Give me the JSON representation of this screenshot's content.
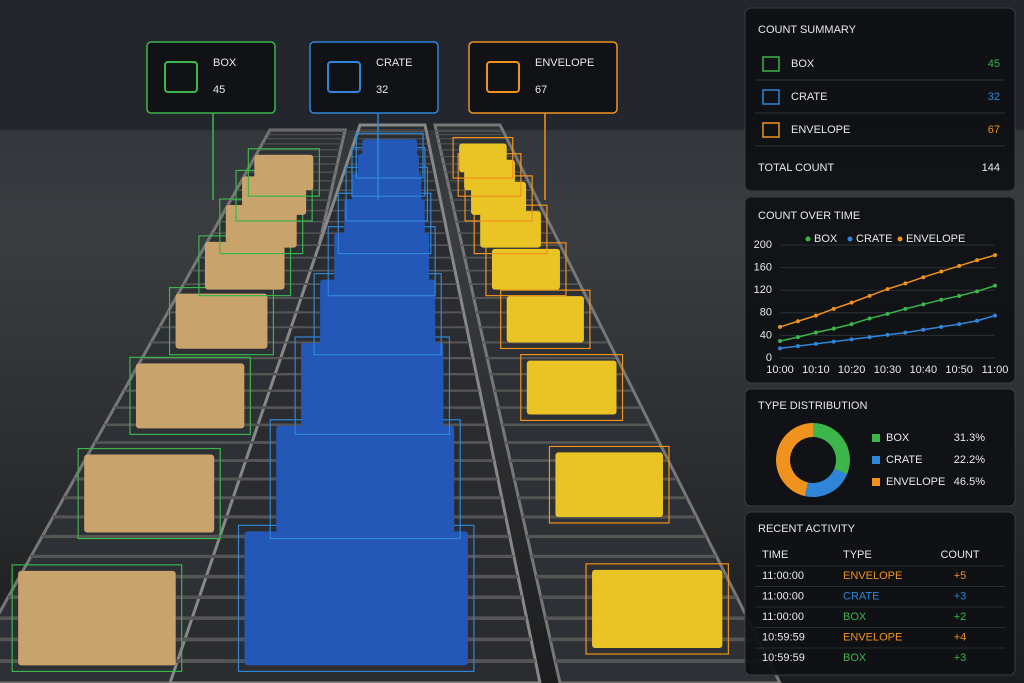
{
  "labels": [
    {
      "name": "BOX",
      "count": 45,
      "color": "#3cb54a"
    },
    {
      "name": "CRATE",
      "count": 32,
      "color": "#2f86d8"
    },
    {
      "name": "ENVELOPE",
      "count": 67,
      "color": "#f0921e"
    }
  ],
  "summary": {
    "title": "COUNT SUMMARY",
    "rows": [
      {
        "name": "BOX",
        "count": 45,
        "color": "#3cb54a"
      },
      {
        "name": "CRATE",
        "count": 32,
        "color": "#2f86d8"
      },
      {
        "name": "ENVELOPE",
        "count": 67,
        "color": "#f0921e"
      }
    ],
    "total_label": "TOTAL COUNT",
    "total": 144
  },
  "chart_data": [
    {
      "type": "line",
      "title": "COUNT OVER TIME",
      "categories": [
        "10:00",
        null,
        "10:10",
        null,
        "10:20",
        null,
        "10:30",
        null,
        "10:40",
        null,
        "10:50",
        null,
        "11:00"
      ],
      "series": [
        {
          "name": "BOX",
          "color": "#3cb54a",
          "values": [
            30,
            37,
            45,
            52,
            60,
            70,
            78,
            87,
            95,
            103,
            110,
            118,
            128
          ]
        },
        {
          "name": "CRATE",
          "color": "#2f86d8",
          "values": [
            17,
            21,
            25,
            29,
            33,
            37,
            41,
            45,
            50,
            55,
            60,
            66,
            75
          ]
        },
        {
          "name": "ENVELOPE",
          "color": "#f0921e",
          "values": [
            55,
            65,
            75,
            87,
            98,
            110,
            122,
            132,
            143,
            153,
            163,
            173,
            182
          ]
        }
      ],
      "ylim": [
        0,
        200
      ],
      "yticks": [
        0,
        40,
        80,
        120,
        160,
        200
      ]
    },
    {
      "type": "pie",
      "title": "TYPE DISTRIBUTION",
      "categories": [
        "BOX",
        "CRATE",
        "ENVELOPE"
      ],
      "values": [
        31.3,
        22.2,
        46.5
      ],
      "value_labels": [
        "31.3%",
        "22.2%",
        "46.5%"
      ],
      "colors": [
        "#3cb54a",
        "#2f86d8",
        "#f0921e"
      ]
    }
  ],
  "recent_activity": {
    "title": "RECENT ACTIVITY",
    "headers": [
      "TIME",
      "TYPE",
      "COUNT"
    ],
    "rows": [
      {
        "time": "11:00:00",
        "type": "ENVELOPE",
        "count": "+5",
        "color": "#f0921e"
      },
      {
        "time": "11:00:00",
        "type": "CRATE",
        "count": "+3",
        "color": "#2f86d8"
      },
      {
        "time": "11:00:00",
        "type": "BOX",
        "count": "+2",
        "color": "#3cb54a"
      },
      {
        "time": "10:59:59",
        "type": "ENVELOPE",
        "count": "+4",
        "color": "#f0921e"
      },
      {
        "time": "10:59:59",
        "type": "BOX",
        "count": "+3",
        "color": "#3cb54a"
      }
    ]
  }
}
